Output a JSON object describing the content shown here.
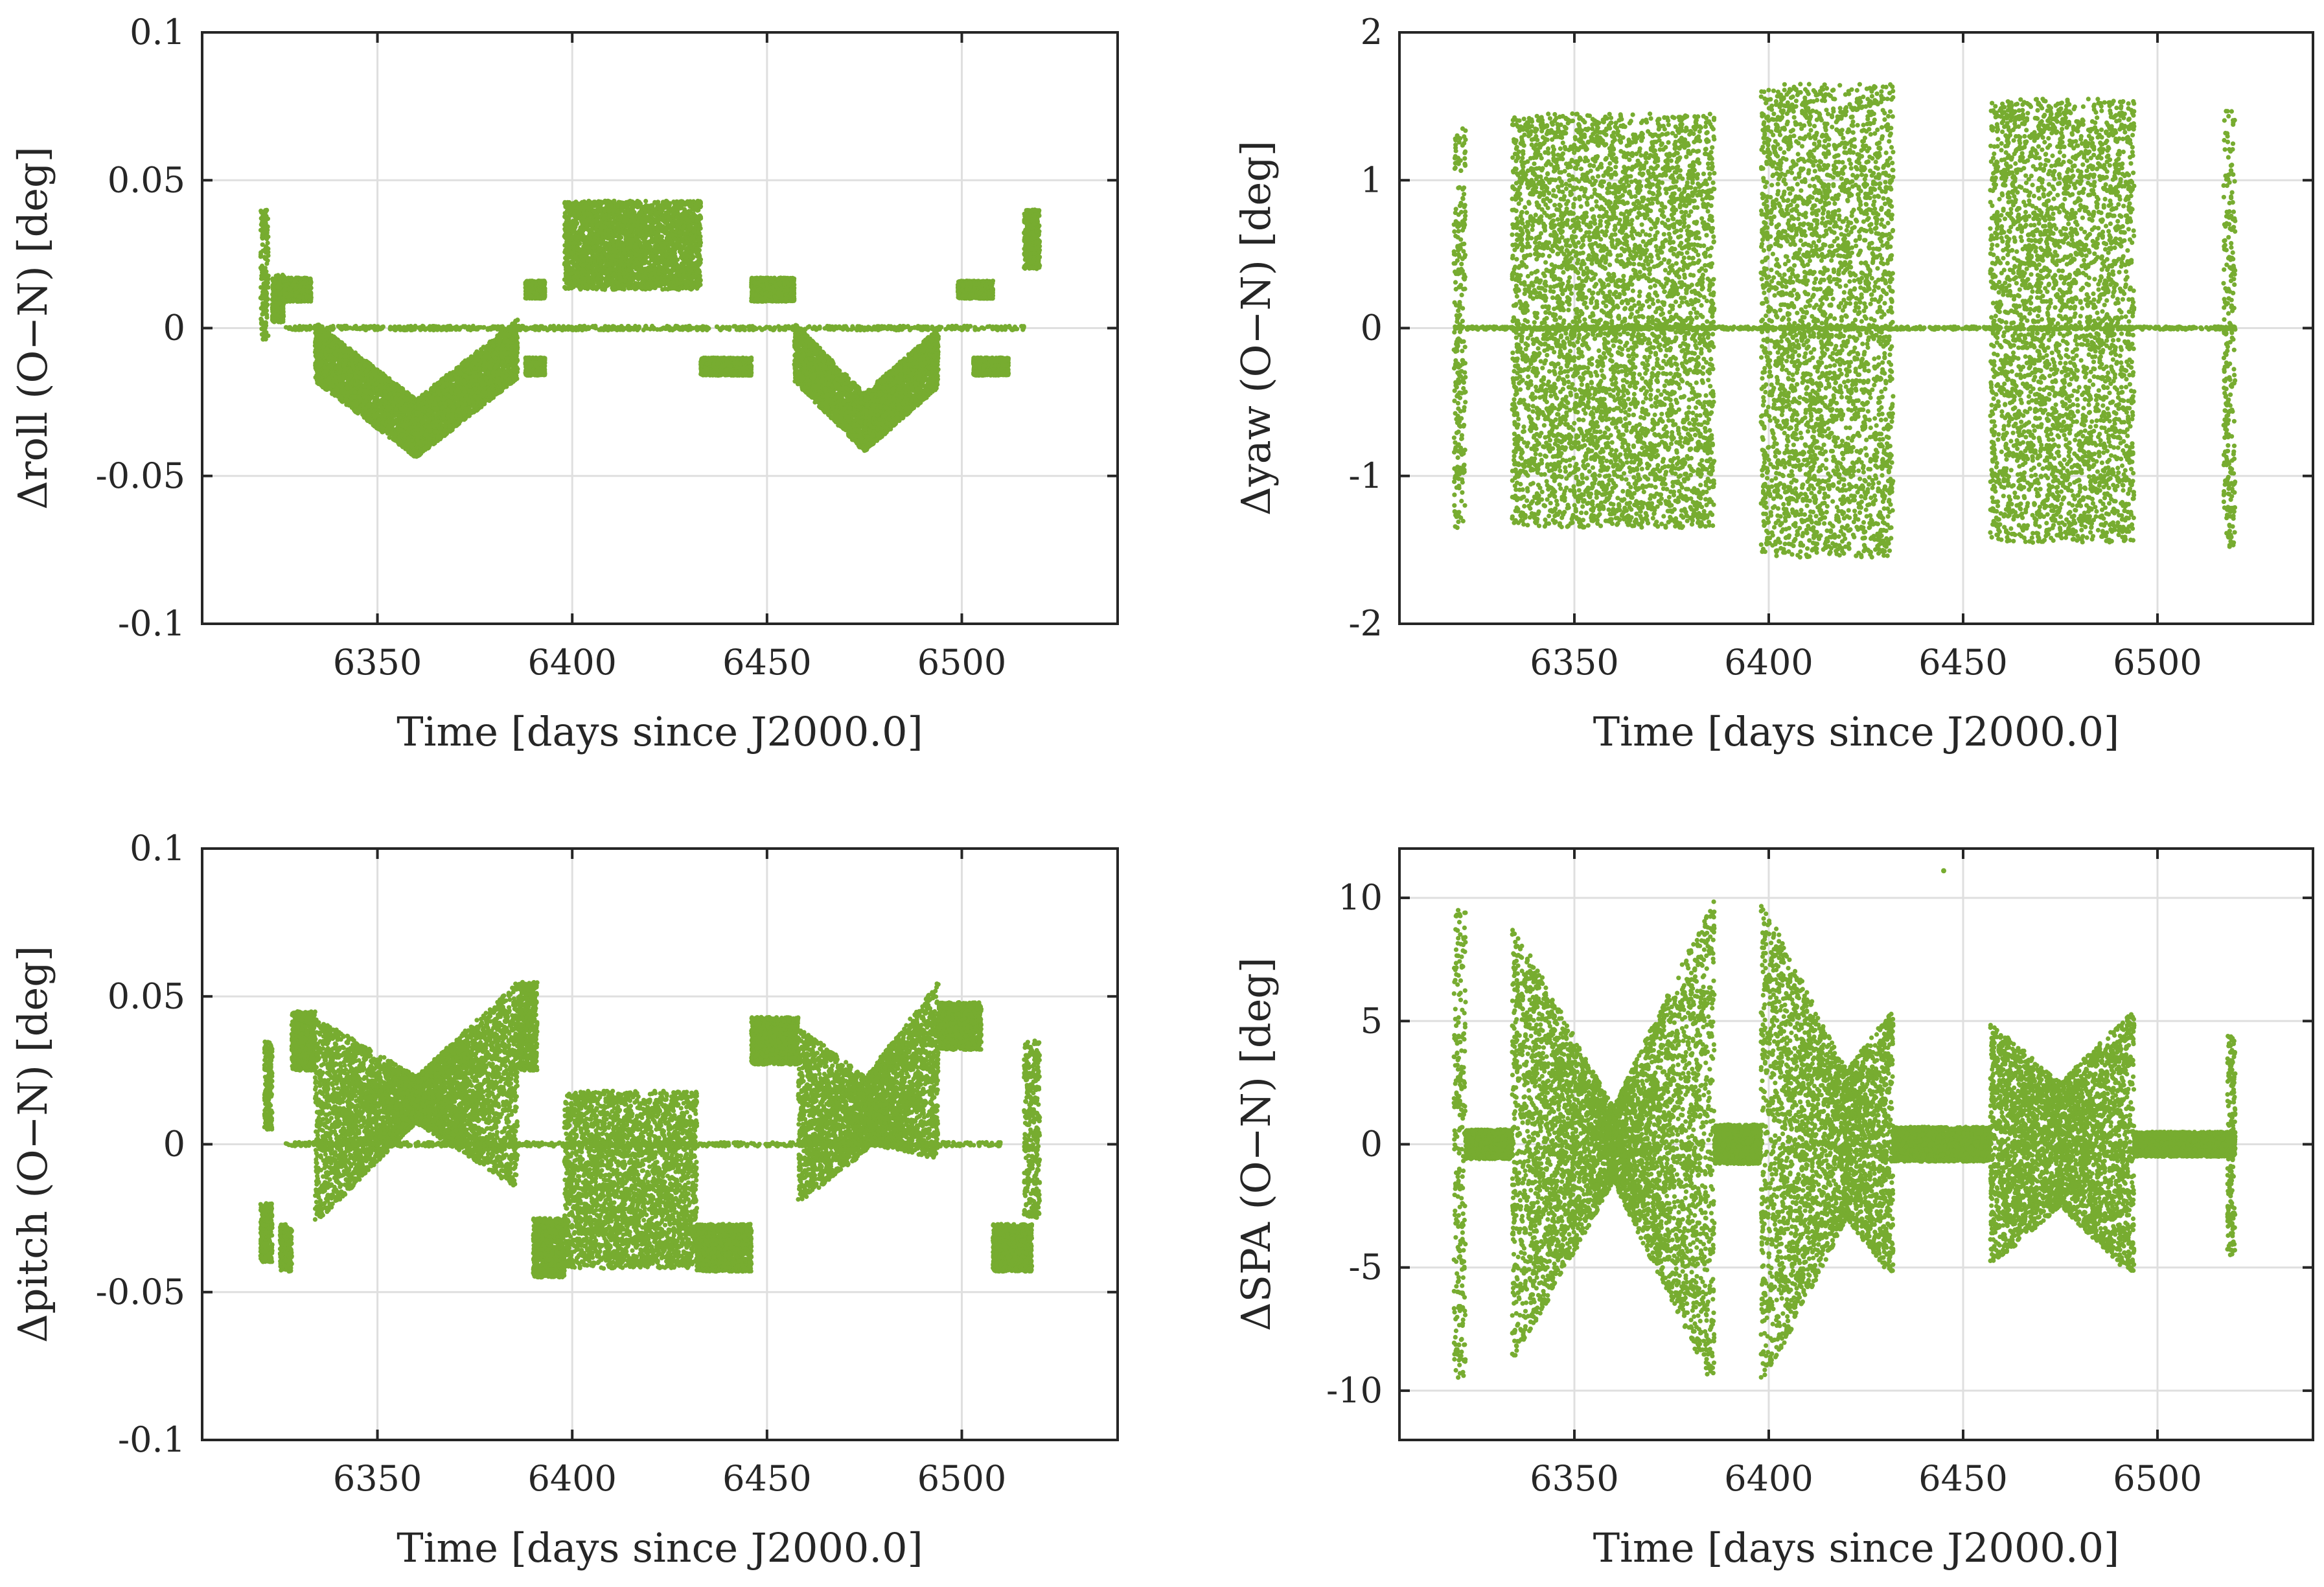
{
  "figure": {
    "marker_color": "#77ac30"
  },
  "chart_data": [
    {
      "type": "scatter",
      "name": "roll",
      "xlabel": "Time [days since J2000.0]",
      "ylabel": "Δroll (O−N) [deg]",
      "xlim": [
        6305,
        6540
      ],
      "ylim": [
        -0.1,
        0.1
      ],
      "xticks": [
        6350,
        6400,
        6450,
        6500
      ],
      "yticks": [
        0.1,
        0.05,
        0,
        -0.05,
        -0.1
      ],
      "ytick_labels": [
        "0.1",
        "0.05",
        "0",
        "-0.05",
        "-0.1"
      ],
      "grid": true,
      "series": [
        {
          "name": "Δroll",
          "segments": [
            {
              "x": [
                6320,
                6322
              ],
              "center": 0.018,
              "spread": 0.022
            },
            {
              "x": [
                6323,
                6326
              ],
              "center": 0.01,
              "spread": 0.008
            },
            {
              "x": [
                6326,
                6333
              ],
              "center": 0.013,
              "spread": 0.004
            },
            {
              "x": [
                6334,
                6360
              ],
              "center_start": -0.008,
              "center_end": -0.034,
              "spread": 0.01
            },
            {
              "x": [
                6360,
                6386
              ],
              "center_start": -0.034,
              "center_end": -0.007,
              "spread": 0.01
            },
            {
              "x": [
                6388,
                6393
              ],
              "center": -0.013,
              "spread": 0.003
            },
            {
              "x": [
                6388,
                6393
              ],
              "center": 0.013,
              "spread": 0.003
            },
            {
              "x": [
                6398,
                6433
              ],
              "center": 0.028,
              "spread": 0.015
            },
            {
              "x": [
                6433,
                6446
              ],
              "center": -0.013,
              "spread": 0.003
            },
            {
              "x": [
                6446,
                6457
              ],
              "center": 0.013,
              "spread": 0.004
            },
            {
              "x": [
                6457,
                6475
              ],
              "center_start": -0.008,
              "center_end": -0.032,
              "spread": 0.01
            },
            {
              "x": [
                6475,
                6494
              ],
              "center_start": -0.032,
              "center_end": -0.01,
              "spread": 0.01
            },
            {
              "x": [
                6499,
                6508
              ],
              "center": 0.013,
              "spread": 0.003
            },
            {
              "x": [
                6503,
                6512
              ],
              "center": -0.013,
              "spread": 0.003
            },
            {
              "x": [
                6516,
                6520
              ],
              "center": 0.03,
              "spread": 0.01
            },
            {
              "x": [
                6326,
                6516
              ],
              "center": 0.0,
              "spread": 0.0007,
              "sparse": true
            }
          ]
        }
      ]
    },
    {
      "type": "scatter",
      "name": "yaw",
      "xlabel": "Time [days since J2000.0]",
      "ylabel": "Δyaw (O−N) [deg]",
      "xlim": [
        6305,
        6540
      ],
      "ylim": [
        -2,
        2
      ],
      "xticks": [
        6350,
        6400,
        6450,
        6500
      ],
      "yticks": [
        2,
        1,
        0,
        -1,
        -2
      ],
      "ytick_labels": [
        "2",
        "1",
        "0",
        "-1",
        "-2"
      ],
      "grid": true,
      "series": [
        {
          "name": "Δyaw",
          "segments": [
            {
              "x": [
                6319,
                6322
              ],
              "center": 0.0,
              "spread": 1.35
            },
            {
              "x": [
                6334,
                6386
              ],
              "center": 0.05,
              "spread": 1.4
            },
            {
              "x": [
                6398,
                6432
              ],
              "center": 0.05,
              "spread": 1.6
            },
            {
              "x": [
                6457,
                6494
              ],
              "center": 0.05,
              "spread": 1.5
            },
            {
              "x": [
                6517,
                6520
              ],
              "center": 0.0,
              "spread": 1.5
            },
            {
              "x": [
                6319,
                6520
              ],
              "center": 0.0,
              "spread": 0.01,
              "sparse": true
            }
          ]
        }
      ]
    },
    {
      "type": "scatter",
      "name": "pitch",
      "xlabel": "Time [days since J2000.0]",
      "ylabel": "Δpitch (O−N) [deg]",
      "xlim": [
        6305,
        6540
      ],
      "ylim": [
        -0.1,
        0.1
      ],
      "xticks": [
        6350,
        6400,
        6450,
        6500
      ],
      "yticks": [
        0.1,
        0.05,
        0,
        -0.05,
        -0.1
      ],
      "ytick_labels": [
        "0.1",
        "0.05",
        "0",
        "-0.05",
        "-0.1"
      ],
      "grid": true,
      "series": [
        {
          "name": "Δpitch",
          "segments": [
            {
              "x": [
                6320,
                6323
              ],
              "center": -0.03,
              "spread": 0.01
            },
            {
              "x": [
                6321,
                6323
              ],
              "center": 0.02,
              "spread": 0.015
            },
            {
              "x": [
                6325,
                6328
              ],
              "center": -0.035,
              "spread": 0.008
            },
            {
              "x": [
                6328,
                6334
              ],
              "center": 0.035,
              "spread": 0.01
            },
            {
              "x": [
                6334,
                6360
              ],
              "center_start": 0.008,
              "center_end": 0.015,
              "spread_start": 0.035,
              "spread_end": 0.008
            },
            {
              "x": [
                6360,
                6386
              ],
              "center_start": 0.015,
              "center_end": 0.02,
              "spread_start": 0.008,
              "spread_end": 0.035
            },
            {
              "x": [
                6386,
                6391
              ],
              "center": 0.04,
              "spread": 0.015
            },
            {
              "x": [
                6390,
                6398
              ],
              "center": -0.035,
              "spread": 0.01
            },
            {
              "x": [
                6398,
                6432
              ],
              "center": -0.012,
              "spread": 0.03
            },
            {
              "x": [
                6432,
                6446
              ],
              "center": -0.035,
              "spread": 0.008
            },
            {
              "x": [
                6446,
                6458
              ],
              "center": 0.035,
              "spread": 0.008
            },
            {
              "x": [
                6458,
                6476
              ],
              "center_start": 0.01,
              "center_end": 0.01,
              "spread_start": 0.03,
              "spread_end": 0.012
            },
            {
              "x": [
                6476,
                6494
              ],
              "center_start": 0.012,
              "center_end": 0.025,
              "spread_start": 0.012,
              "spread_end": 0.03
            },
            {
              "x": [
                6494,
                6505
              ],
              "center": 0.04,
              "spread": 0.008
            },
            {
              "x": [
                6508,
                6518
              ],
              "center": -0.035,
              "spread": 0.008
            },
            {
              "x": [
                6516,
                6520
              ],
              "center": 0.005,
              "spread": 0.03
            },
            {
              "x": [
                6326,
                6510
              ],
              "center": 0.0,
              "spread": 0.0007,
              "sparse": true
            }
          ]
        }
      ]
    },
    {
      "type": "scatter",
      "name": "SPA",
      "xlabel": "Time [days since J2000.0]",
      "ylabel": "ΔSPA (O−N) [deg]",
      "xlim": [
        6305,
        6540
      ],
      "ylim": [
        -12,
        12
      ],
      "xticks": [
        6350,
        6400,
        6450,
        6500
      ],
      "yticks": [
        10,
        5,
        0,
        -5,
        -10
      ],
      "ytick_labels": [
        "10",
        "5",
        "0",
        "-5",
        "-10"
      ],
      "grid": true,
      "series": [
        {
          "name": "ΔSPA",
          "segments": [
            {
              "x": [
                6319,
                6322
              ],
              "center": 0.0,
              "spread": 9.5
            },
            {
              "x": [
                6322,
                6334
              ],
              "center": 0.0,
              "spread": 0.6
            },
            {
              "x": [
                6334,
                6360
              ],
              "center": 0.0,
              "spread_start": 9.0,
              "spread_end": 1.5
            },
            {
              "x": [
                6360,
                6386
              ],
              "center": 0.0,
              "spread_start": 1.5,
              "spread_end": 10.0
            },
            {
              "x": [
                6386,
                6398
              ],
              "center": 0.0,
              "spread": 0.8
            },
            {
              "x": [
                6398,
                6420
              ],
              "center": 0.0,
              "spread_start": 10.0,
              "spread_end": 3.0
            },
            {
              "x": [
                6420,
                6432
              ],
              "center": 0.0,
              "spread_start": 3.0,
              "spread_end": 5.5
            },
            {
              "x": [
                6432,
                6457
              ],
              "center": 0.0,
              "spread": 0.7
            },
            {
              "x": [
                6457,
                6475
              ],
              "center": 0.0,
              "spread_start": 5.0,
              "spread_end": 2.5
            },
            {
              "x": [
                6475,
                6494
              ],
              "center": 0.0,
              "spread_start": 2.5,
              "spread_end": 5.5
            },
            {
              "x": [
                6494,
                6520
              ],
              "center": 0.0,
              "spread": 0.5
            },
            {
              "x": [
                6518,
                6520
              ],
              "center": 0.0,
              "spread": 4.5
            }
          ],
          "outliers": [
            {
              "x": 6445,
              "y": 11.1
            }
          ]
        }
      ]
    }
  ]
}
